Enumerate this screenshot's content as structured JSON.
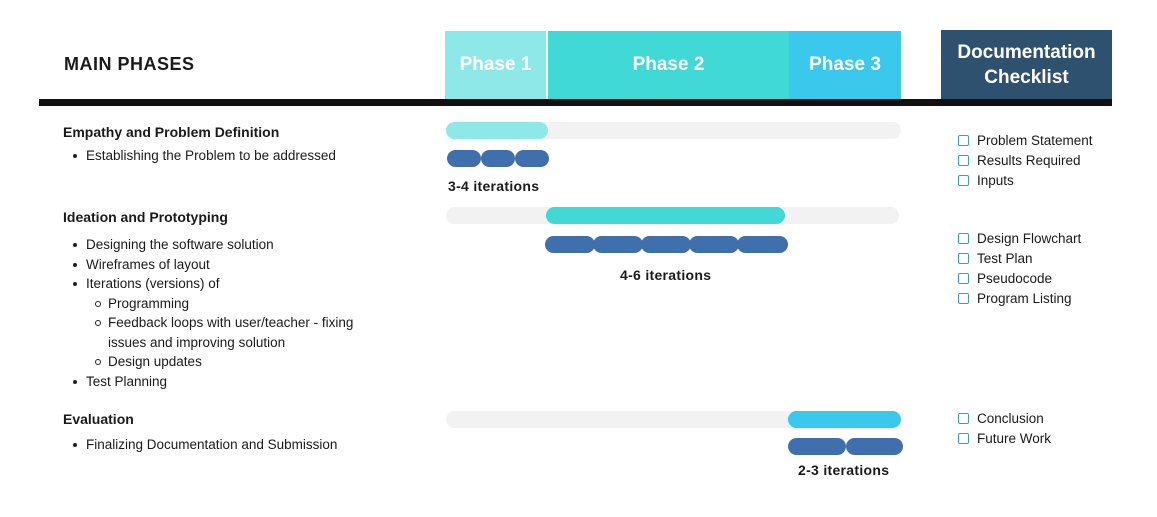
{
  "header": {
    "title": "MAIN PHASES",
    "phases": [
      {
        "label": "Phase 1",
        "color": "#8ee8e8"
      },
      {
        "label": "Phase 2",
        "color": "#40d9d6"
      },
      {
        "label": "Phase 3",
        "color": "#3ac9ec"
      }
    ],
    "doc_checklist_line1": "Documentation",
    "doc_checklist_line2": "Checklist",
    "doc_color": "#2f5170"
  },
  "sections": [
    {
      "title": "Empathy and Problem Definition",
      "bullets": [
        "Establishing the Problem to be addressed"
      ],
      "iterations": "3-4 iterations",
      "checklist": [
        "Problem Statement",
        "Results Required",
        "Inputs"
      ]
    },
    {
      "title": "Ideation and Prototyping",
      "bullets": [
        "Designing the software solution",
        "Wireframes of layout",
        "Iterations (versions) of",
        "Test Planning"
      ],
      "sub_bullets": [
        "Programming",
        "Feedback loops with user/teacher - fixing",
        "issues and improving solution",
        "Design updates"
      ],
      "iterations": "4-6 iterations",
      "checklist": [
        "Design Flowchart",
        "Test Plan",
        "Pseudocode",
        "Program Listing"
      ]
    },
    {
      "title": "Evaluation",
      "bullets": [
        "Finalizing Documentation and Submission"
      ],
      "iterations": "2-3 iterations",
      "checklist": [
        "Conclusion",
        "Future Work"
      ]
    }
  ],
  "colors": {
    "track": "#f2f2f2",
    "pill": "#3f6fad",
    "divider": "#111111"
  }
}
